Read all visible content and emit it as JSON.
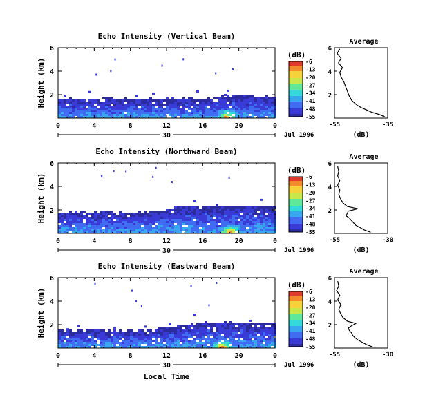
{
  "chart_data": [
    {
      "type": "heatmap",
      "title": "Echo Intensity (Vertical Beam)",
      "ylabel": "Height (km)",
      "ylim": [
        0,
        6
      ],
      "yticks": [
        "2",
        "4",
        "6"
      ],
      "xlim": [
        0,
        24
      ],
      "xticks": [
        "0",
        "4",
        "8",
        "12",
        "16",
        "20",
        "0"
      ],
      "date_day": "30",
      "date_label": "Jul 1996",
      "colorbar": {
        "unit": "(dB)",
        "labels": [
          "-6",
          "-13",
          "-20",
          "-27",
          "-34",
          "-41",
          "-48",
          "-55"
        ]
      },
      "echo_top_km": [
        1.55,
        1.6,
        1.55,
        1.6,
        1.55,
        1.6,
        1.55,
        1.6,
        1.55,
        1.55,
        1.6,
        1.55,
        1.6,
        1.55,
        1.6,
        1.5,
        1.55,
        1.7,
        1.8,
        1.85,
        1.75,
        1.8,
        1.75,
        1.6
      ],
      "peak_hour": 18.5,
      "profile": {
        "title": "Average",
        "xlabel": "(dB)",
        "xticks": [
          "-55",
          "-35"
        ],
        "xlim": [
          -55,
          -35
        ],
        "ylim": [
          0,
          6
        ],
        "yticks": [
          "2",
          "4",
          "6"
        ],
        "heights": [
          0.1,
          0.3,
          0.5,
          0.7,
          0.9,
          1.1,
          1.3,
          1.5,
          1.7,
          1.9,
          2.2,
          2.5,
          2.8,
          3.1,
          3.5,
          3.9,
          4.3,
          4.7,
          5.1,
          5.5,
          5.9
        ],
        "values": [
          -36,
          -38,
          -41,
          -43,
          -45,
          -46.5,
          -47.5,
          -48.5,
          -49,
          -49.5,
          -50,
          -50.5,
          -51,
          -51.5,
          -52.5,
          -53,
          -52,
          -53.5,
          -52.5,
          -54,
          -53
        ]
      }
    },
    {
      "type": "heatmap",
      "title": "Echo Intensity (Northward Beam)",
      "ylabel": "Height (km)",
      "ylim": [
        0,
        6
      ],
      "yticks": [
        "2",
        "4",
        "6"
      ],
      "xlim": [
        0,
        24
      ],
      "xticks": [
        "0",
        "4",
        "8",
        "12",
        "16",
        "20",
        "0"
      ],
      "date_day": "30",
      "date_label": "Jul 1996",
      "colorbar": {
        "unit": "(dB)",
        "labels": [
          "-6",
          "-13",
          "-20",
          "-27",
          "-34",
          "-41",
          "-48",
          "-55"
        ]
      },
      "echo_top_km": [
        1.7,
        1.75,
        1.8,
        1.7,
        1.75,
        1.8,
        1.75,
        1.7,
        1.8,
        1.75,
        1.8,
        1.9,
        2.1,
        2.2,
        2.2,
        2.15,
        2.2,
        2.25,
        2.2,
        2.2,
        2.2,
        2.25,
        2.2,
        2.2
      ],
      "peak_hour": 19,
      "profile": {
        "title": "Average",
        "xlabel": "(dB)",
        "xticks": [
          "-55",
          "-30"
        ],
        "xlim": [
          -55,
          -30
        ],
        "ylim": [
          0,
          6
        ],
        "yticks": [
          "2",
          "4",
          "6"
        ],
        "heights": [
          0.1,
          0.3,
          0.5,
          0.7,
          0.9,
          1.1,
          1.3,
          1.5,
          1.7,
          1.9,
          2.1,
          2.3,
          2.6,
          2.9,
          3.3,
          3.7,
          4.1,
          4.5,
          4.9,
          5.3,
          5.7
        ],
        "values": [
          -38,
          -41,
          -43,
          -45,
          -46,
          -47,
          -48,
          -49.5,
          -49,
          -48.5,
          -44,
          -49,
          -51,
          -52,
          -53,
          -52.5,
          -53.5,
          -52.5,
          -53.5,
          -53,
          -53.5
        ]
      }
    },
    {
      "type": "heatmap",
      "title": "Echo Intensity (Eastward Beam)",
      "ylabel": "Height (km)",
      "ylim": [
        0,
        6
      ],
      "yticks": [
        "2",
        "4",
        "6"
      ],
      "xlim": [
        0,
        24
      ],
      "xticks": [
        "0",
        "4",
        "8",
        "12",
        "16",
        "20",
        "0"
      ],
      "date_day": "30",
      "date_label": "Jul 1996",
      "xlabel": "Local Time",
      "colorbar": {
        "unit": "(dB)",
        "labels": [
          "-6",
          "-13",
          "-20",
          "-27",
          "-34",
          "-41",
          "-48",
          "-55"
        ]
      },
      "echo_top_km": [
        1.45,
        1.4,
        1.45,
        1.5,
        1.4,
        1.45,
        1.5,
        1.45,
        1.4,
        1.45,
        1.5,
        1.6,
        1.7,
        1.8,
        1.9,
        2.0,
        2.1,
        2.0,
        2.1,
        2.0,
        2.1,
        2.0,
        2.05,
        2.0
      ],
      "peak_hour": 18,
      "profile": {
        "title": "Average",
        "xlabel": "(dB)",
        "xticks": [
          "-55",
          "-30"
        ],
        "xlim": [
          -55,
          -30
        ],
        "ylim": [
          0,
          6
        ],
        "yticks": [
          "2",
          "4",
          "6"
        ],
        "heights": [
          0.1,
          0.3,
          0.5,
          0.7,
          0.9,
          1.1,
          1.3,
          1.5,
          1.7,
          1.9,
          2.1,
          2.3,
          2.6,
          2.9,
          3.3,
          3.7,
          4.1,
          4.5,
          4.9,
          5.3,
          5.7
        ],
        "values": [
          -37,
          -40,
          -42,
          -44,
          -45.5,
          -46.5,
          -47,
          -48,
          -48.5,
          -47,
          -45,
          -49,
          -51,
          -52,
          -53,
          -52,
          -53.5,
          -52.5,
          -54,
          -53,
          -53.5
        ]
      }
    }
  ],
  "colormap": [
    "#2c2c9e",
    "#3a3ad6",
    "#3f6cf0",
    "#39a6f0",
    "#34d9d9",
    "#5ee89a",
    "#c8e84a",
    "#f5d23a",
    "#f58a2a",
    "#e03a2a"
  ]
}
